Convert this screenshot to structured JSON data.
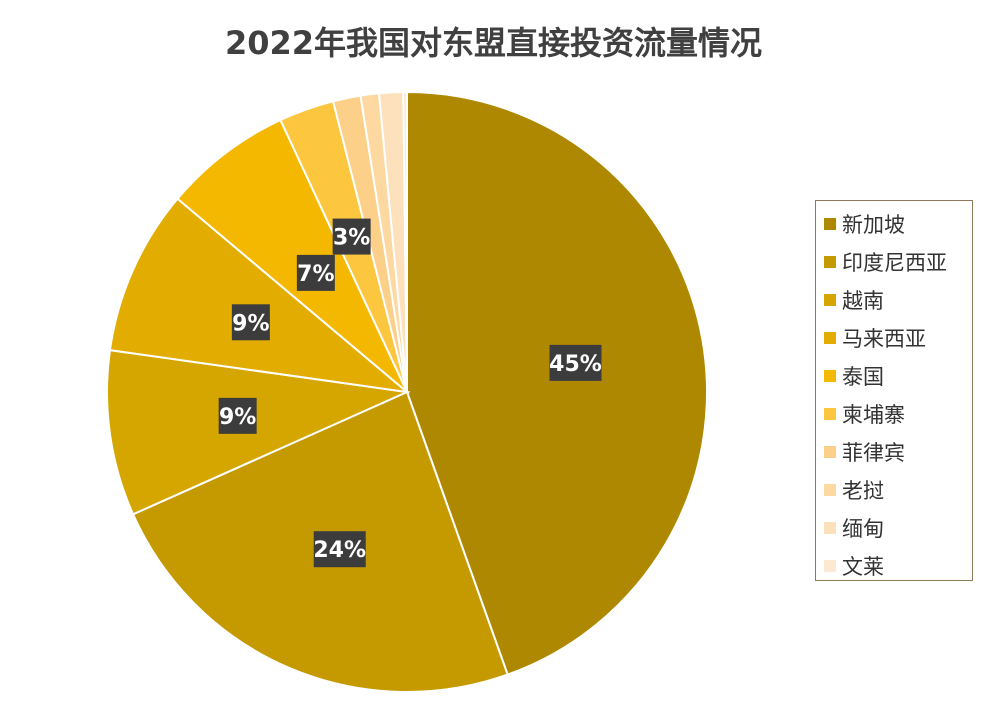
{
  "chart_data": {
    "type": "pie",
    "title": "2022年我国对东盟直接投资流量情况",
    "categories": [
      "新加坡",
      "印度尼西亚",
      "越南",
      "马来西亚",
      "泰国",
      "柬埔寨",
      "菲律宾",
      "老挝",
      "缅甸",
      "文莱"
    ],
    "values": [
      45,
      24,
      9,
      9,
      7,
      3,
      1.5,
      1,
      1.3,
      0.2
    ],
    "data_labels": [
      "45%",
      "24%",
      "9%",
      "9%",
      "7%",
      "3%",
      "",
      "",
      "",
      ""
    ],
    "colors": [
      "#ae8800",
      "#c49a00",
      "#d5a600",
      "#e2ac00",
      "#f5b800",
      "#fcc63e",
      "#fdd08a",
      "#fdd8a0",
      "#fde1bc",
      "#fde9d2"
    ],
    "legend_position": "right",
    "start_angle_deg": 0,
    "direction": "clockwise"
  }
}
